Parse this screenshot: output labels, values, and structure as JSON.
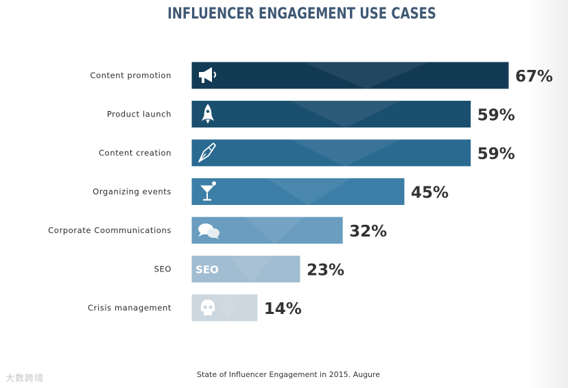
{
  "chart_data": {
    "type": "bar",
    "orientation": "horizontal",
    "title": "INFLUENCER ENGAGEMENT USE CASES",
    "categories": [
      "Content promotion",
      "Product launch",
      "Content creation",
      "Organizing events",
      "Corporate Coommunications",
      "SEO",
      "Crisis management"
    ],
    "values": [
      67,
      59,
      59,
      45,
      32,
      23,
      14
    ],
    "value_labels": [
      "67%",
      "59%",
      "59%",
      "45%",
      "32%",
      "23%",
      "14%"
    ],
    "bar_colors": [
      "#123a55",
      "#1b4f6e",
      "#2a6a91",
      "#3d7ea6",
      "#6a9dbf",
      "#a2bdd1",
      "#ccd7df"
    ],
    "bar_icons": [
      "megaphone-icon",
      "rocket-icon",
      "pen-nib-icon",
      "cocktail-icon",
      "chat-bubbles-icon",
      "seo-icon",
      "skull-icon"
    ],
    "seo_icon_text": "SEO",
    "unit": "%",
    "xlim": [
      0,
      67
    ],
    "xlabel": "",
    "ylabel": "",
    "grid": false,
    "legend": "none"
  },
  "source": "State of Influencer Engagement in 2015. Augure",
  "watermark": "大数跨境"
}
